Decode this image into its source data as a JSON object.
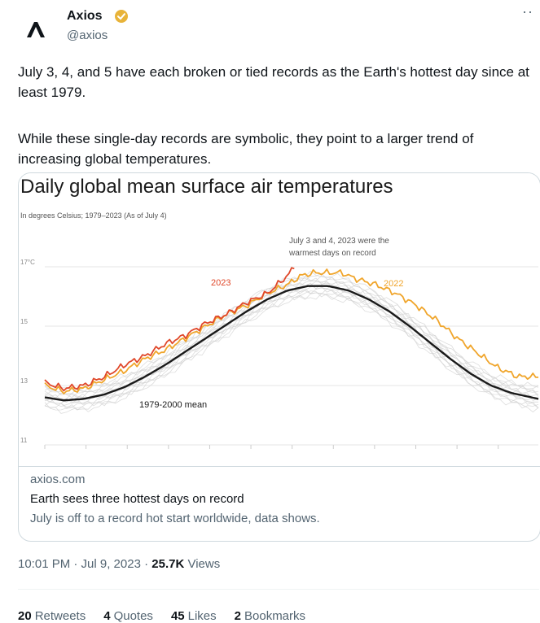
{
  "tweet": {
    "author_name": "Axios",
    "handle": "@axios",
    "more_icon": "more-horizontal-icon",
    "verified_icon": "verified-badge-icon",
    "text_paragraph_1": "July 3, 4, and 5 have each broken or tied records as the Earth's hottest day since at least 1979.",
    "text_paragraph_2": "While these single-day records are symbolic, they point to a larger trend of increasing global temperatures.",
    "timestamp": "10:01 PM · Jul 9, 2023 · ",
    "views_count": "25.7K",
    "views_label": "Views"
  },
  "card": {
    "domain": "axios.com",
    "title": "Earth sees three hottest days on record",
    "description": "July is off to a record hot start worldwide, data shows."
  },
  "stats": {
    "retweets_count": "20",
    "retweets_label": "Retweets",
    "quotes_count": "4",
    "quotes_label": "Quotes",
    "likes_count": "45",
    "likes_label": "Likes",
    "bookmarks_count": "2",
    "bookmarks_label": "Bookmarks"
  },
  "colors": {
    "series_2023": "#e0482a",
    "series_2022": "#f0a52b",
    "series_mean": "#1a1a1a",
    "series_history": "#cfcfcf"
  },
  "chart_data": {
    "type": "line",
    "title": "Daily global mean surface air temperatures",
    "subtitle": "In degrees Celsius; 1979–2023 (As of July 4)",
    "y_tick_labels": [
      "17°C",
      "15",
      "13",
      "11"
    ],
    "ylim": [
      11,
      17.5
    ],
    "x_range_days": [
      1,
      365
    ],
    "annotation": "July 3 and 4, 2023 were the warmest days on record",
    "series": [
      {
        "name": "2023",
        "x": [
          1,
          15,
          30,
          45,
          60,
          75,
          90,
          105,
          120,
          135,
          150,
          165,
          175,
          180,
          185
        ],
        "values": [
          13.1,
          12.9,
          13.0,
          13.3,
          13.7,
          14.0,
          14.4,
          14.7,
          15.1,
          15.4,
          15.8,
          16.1,
          16.5,
          16.7,
          17.0
        ]
      },
      {
        "name": "2022",
        "x": [
          1,
          15,
          30,
          45,
          60,
          75,
          90,
          105,
          120,
          135,
          150,
          165,
          180,
          190,
          200,
          210,
          220,
          230,
          245,
          260,
          275,
          290,
          305,
          320,
          335,
          350,
          365
        ],
        "values": [
          13.0,
          12.8,
          12.9,
          13.2,
          13.5,
          13.9,
          14.2,
          14.6,
          15.0,
          15.4,
          15.7,
          16.1,
          16.4,
          16.7,
          16.8,
          16.8,
          16.8,
          16.6,
          16.4,
          16.1,
          15.7,
          15.2,
          14.6,
          14.1,
          13.6,
          13.3,
          13.3
        ]
      },
      {
        "name": "1979-2000 mean",
        "x": [
          1,
          15,
          30,
          45,
          60,
          75,
          90,
          105,
          120,
          135,
          150,
          165,
          180,
          195,
          210,
          225,
          240,
          255,
          270,
          285,
          300,
          315,
          330,
          345,
          365
        ],
        "values": [
          12.6,
          12.5,
          12.55,
          12.7,
          12.95,
          13.3,
          13.7,
          14.15,
          14.6,
          15.05,
          15.5,
          15.9,
          16.2,
          16.35,
          16.35,
          16.2,
          15.9,
          15.5,
          15.0,
          14.45,
          13.9,
          13.4,
          13.0,
          12.75,
          12.55
        ]
      }
    ]
  }
}
